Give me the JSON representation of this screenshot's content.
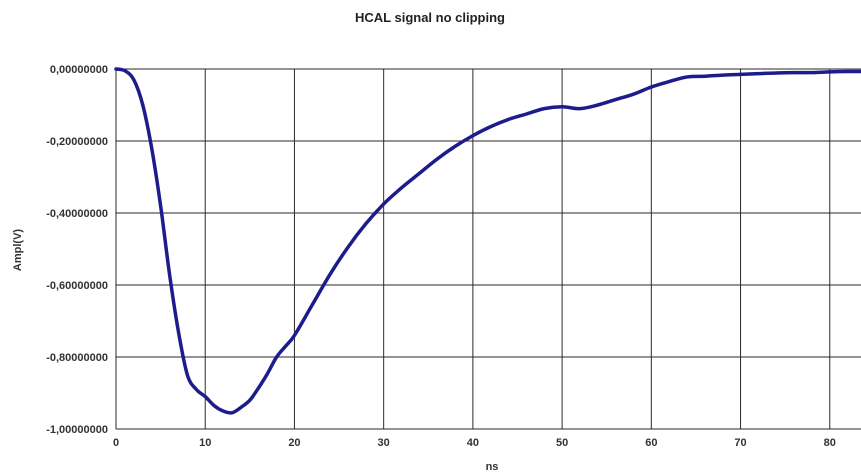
{
  "chart_data": {
    "type": "line",
    "title": "HCAL signal no clipping",
    "xlabel": "ns",
    "ylabel": "Ampl(V)",
    "xlim": [
      0,
      83.5
    ],
    "ylim": [
      -1.0,
      0.0
    ],
    "x_ticks": [
      0,
      10,
      20,
      30,
      40,
      50,
      60,
      70,
      80
    ],
    "x_tick_labels": [
      "0",
      "10",
      "20",
      "30",
      "40",
      "50",
      "60",
      "70",
      "80"
    ],
    "y_ticks": [
      0.0,
      -0.2,
      -0.4,
      -0.6,
      -0.8,
      -1.0
    ],
    "y_tick_labels": [
      "0,00000000",
      "-0,20000000",
      "-0,40000000",
      "-0,60000000",
      "-0,80000000",
      "-1,00000000"
    ],
    "grid": true,
    "legend": "none",
    "line_color": "#1c1c8c",
    "series": [
      {
        "x": [
          0,
          1,
          2,
          3,
          4,
          5,
          6,
          7,
          8,
          9,
          10,
          11,
          12,
          13,
          14,
          15,
          16,
          17,
          18,
          19,
          20,
          22,
          24,
          26,
          28,
          30,
          32,
          34,
          36,
          38,
          40,
          42,
          44,
          46,
          48,
          50,
          52,
          54,
          56,
          58,
          60,
          62,
          64,
          66,
          68,
          70,
          72,
          74,
          76,
          78,
          80,
          82,
          83.5
        ],
        "y": [
          0.0,
          -0.005,
          -0.03,
          -0.1,
          -0.22,
          -0.38,
          -0.57,
          -0.73,
          -0.85,
          -0.89,
          -0.91,
          -0.935,
          -0.95,
          -0.955,
          -0.94,
          -0.92,
          -0.885,
          -0.845,
          -0.8,
          -0.77,
          -0.74,
          -0.655,
          -0.57,
          -0.495,
          -0.43,
          -0.375,
          -0.33,
          -0.29,
          -0.25,
          -0.215,
          -0.185,
          -0.16,
          -0.14,
          -0.125,
          -0.11,
          -0.105,
          -0.11,
          -0.1,
          -0.085,
          -0.07,
          -0.05,
          -0.035,
          -0.022,
          -0.02,
          -0.017,
          -0.015,
          -0.013,
          -0.011,
          -0.01,
          -0.01,
          -0.008,
          -0.007,
          -0.007
        ]
      }
    ]
  }
}
